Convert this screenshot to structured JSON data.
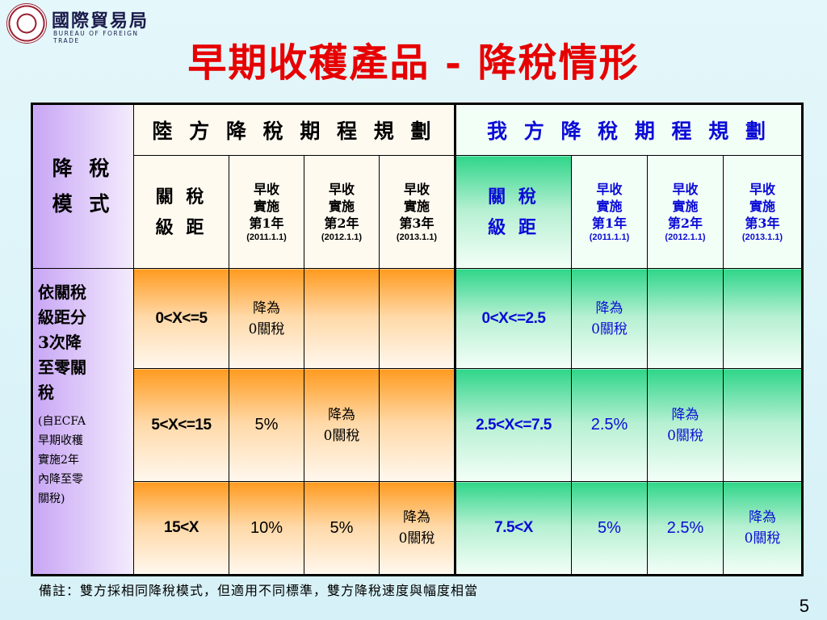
{
  "logo": {
    "name_cn": "國際貿易局",
    "name_en": "BUREAU OF FOREIGN TRADE"
  },
  "title": "早期收穫產品 - 降稅情形",
  "table": {
    "corner": {
      "line1": "降 稅",
      "line2": "模 式"
    },
    "mainland_header": "陸 方 降 稅 期 程 規 劃",
    "our_header": "我 方 降 稅 期 程 規 劃",
    "bracket_label": {
      "line1": "關 稅",
      "line2": "級 距"
    },
    "years": [
      {
        "line1": "早收",
        "line2": "實施",
        "line3": "第1年",
        "date": "(2011.1.1)"
      },
      {
        "line1": "早收",
        "line2": "實施",
        "line3": "第2年",
        "date": "(2012.1.1)"
      },
      {
        "line1": "早收",
        "line2": "實施",
        "line3": "第3年",
        "date": "(2013.1.1)"
      }
    ],
    "zero_label": {
      "line1": "降為",
      "line2": "0關稅"
    },
    "left_note": {
      "line1": "依關稅",
      "line2": "級距分",
      "line3": "3次降",
      "line4": "至零關",
      "line5": "稅",
      "small1": "(自ECFA",
      "small2": "早期收穫",
      "small3": "實施2年",
      "small4": "內降至零",
      "small5": "關稅)"
    },
    "rows": [
      {
        "cn_range": "0<X<=5",
        "cn_y2": "",
        "cn_y3": "",
        "tw_range": "0<X<=2.5",
        "tw_y2": "",
        "tw_y3": ""
      },
      {
        "cn_range": "5<X<=15",
        "cn_y1": "5%",
        "cn_y3": "",
        "tw_range": "2.5<X<=7.5",
        "tw_y1": "2.5%",
        "tw_y3": ""
      },
      {
        "cn_range": "15<X",
        "cn_y1": "10%",
        "cn_y2": "5%",
        "tw_range": "7.5<X",
        "tw_y1": "5%",
        "tw_y2": "2.5%"
      }
    ]
  },
  "footer_note": "備註：雙方採相同降稅模式，但適用不同標準，雙方降稅速度與幅度相當",
  "page_number": "5",
  "colors": {
    "title": "#e60000",
    "mainland_accent": "#ff9b1f",
    "our_accent": "#2fd68a",
    "our_text": "#0b0bd6",
    "left_column": "#c8a6f5",
    "background": "#d6f1f7"
  }
}
